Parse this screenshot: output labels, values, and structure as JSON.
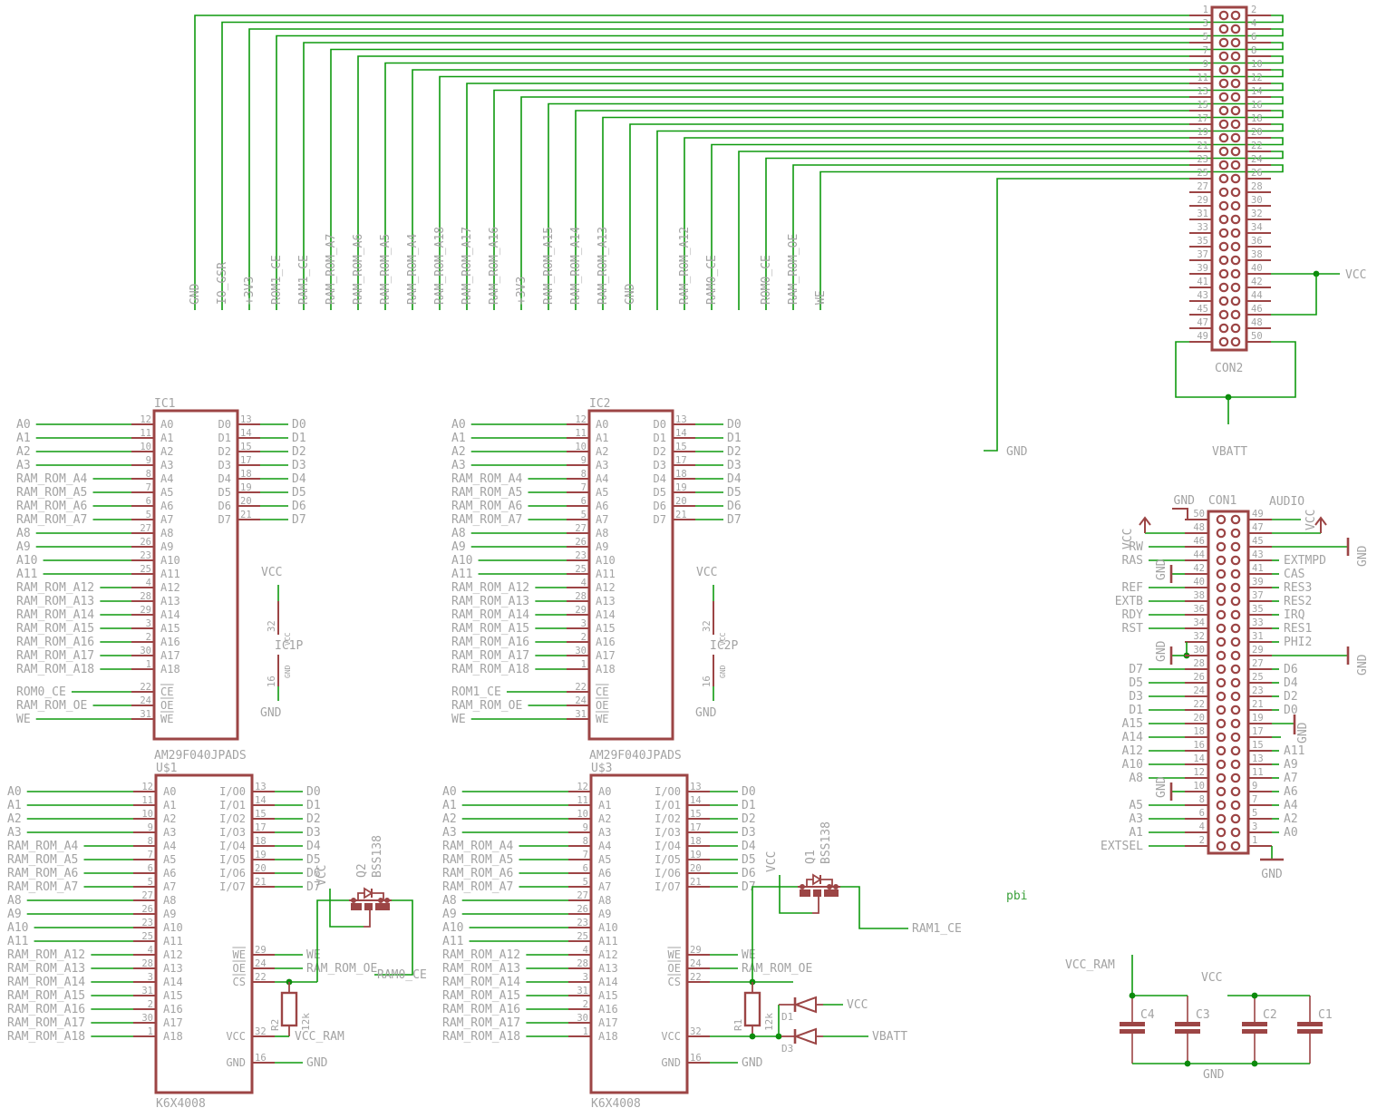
{
  "palette": {
    "wire_green": "#0f9a0f",
    "junction_green": "#0c8a0c",
    "part_maroon": "#9c4545",
    "text_gray": "#a3a3a3",
    "sheet_label_green": "#3aa03a"
  },
  "bus": {
    "labels": [
      "GND",
      "IO_GSR",
      "+3V3",
      "ROM1_CE",
      "RAM1_CE",
      "RAM_ROM_A7",
      "RAM_ROM_A6",
      "RAM_ROM_A5",
      "RAM_ROM_A4",
      "RAM_ROM_A18",
      "RAM_ROM_A17",
      "RAM_ROM_A16",
      "+3V3",
      "RAM_ROM_A15",
      "RAM_ROM_A14",
      "RAM_ROM_A13",
      "GND",
      null,
      "RAM_ROM_A12",
      "RAM0_CE",
      null,
      "ROM0_CE",
      "RAM_ROM_OE",
      "WE"
    ],
    "pin25_net": "GND"
  },
  "con2": {
    "title": "CON2",
    "pin_numbers": [
      1,
      2,
      3,
      4,
      5,
      6,
      7,
      8,
      9,
      10,
      11,
      12,
      13,
      14,
      15,
      16,
      17,
      18,
      19,
      20,
      21,
      22,
      23,
      24,
      25,
      26,
      27,
      28,
      29,
      30,
      31,
      32,
      33,
      34,
      35,
      36,
      37,
      38,
      39,
      40,
      41,
      42,
      43,
      44,
      45,
      46,
      47,
      48,
      49,
      50
    ],
    "vcc_label": "VCC",
    "vbatt_label": "VBATT"
  },
  "flash": {
    "value": "AM29F040JPADS",
    "instances": [
      {
        "name": "IC1",
        "power_name": "IC1P",
        "ce_net": "ROM0_CE"
      },
      {
        "name": "IC2",
        "power_name": "IC2P",
        "ce_net": "ROM1_CE"
      }
    ],
    "left_pins": [
      {
        "net": "A0",
        "pin": "A0",
        "num": "12"
      },
      {
        "net": "A1",
        "pin": "A1",
        "num": "11"
      },
      {
        "net": "A2",
        "pin": "A2",
        "num": "10"
      },
      {
        "net": "A3",
        "pin": "A3",
        "num": "9"
      },
      {
        "net": "RAM_ROM_A4",
        "pin": "A4",
        "num": "8"
      },
      {
        "net": "RAM_ROM_A5",
        "pin": "A5",
        "num": "7"
      },
      {
        "net": "RAM_ROM_A6",
        "pin": "A6",
        "num": "6"
      },
      {
        "net": "RAM_ROM_A7",
        "pin": "A7",
        "num": "5"
      },
      {
        "net": "A8",
        "pin": "A8",
        "num": "27"
      },
      {
        "net": "A9",
        "pin": "A9",
        "num": "26"
      },
      {
        "net": "A10",
        "pin": "A10",
        "num": "23"
      },
      {
        "net": "A11",
        "pin": "A11",
        "num": "25"
      },
      {
        "net": "RAM_ROM_A12",
        "pin": "A12",
        "num": "4"
      },
      {
        "net": "RAM_ROM_A13",
        "pin": "A13",
        "num": "28"
      },
      {
        "net": "RAM_ROM_A14",
        "pin": "A14",
        "num": "29"
      },
      {
        "net": "RAM_ROM_A15",
        "pin": "A15",
        "num": "3"
      },
      {
        "net": "RAM_ROM_A16",
        "pin": "A16",
        "num": "2"
      },
      {
        "net": "RAM_ROM_A17",
        "pin": "A17",
        "num": "30"
      },
      {
        "net": "RAM_ROM_A18",
        "pin": "A18",
        "num": "1"
      }
    ],
    "ctrl_pins": [
      {
        "pin": "CE",
        "num": "22",
        "net": "CE_NET"
      },
      {
        "pin": "OE",
        "num": "24",
        "net": "RAM_ROM_OE"
      },
      {
        "pin": "WE",
        "num": "31",
        "net": "WE"
      }
    ],
    "right_pins": [
      {
        "net": "D0",
        "pin": "D0",
        "num": "13"
      },
      {
        "net": "D1",
        "pin": "D1",
        "num": "14"
      },
      {
        "net": "D2",
        "pin": "D2",
        "num": "15"
      },
      {
        "net": "D3",
        "pin": "D3",
        "num": "17"
      },
      {
        "net": "D4",
        "pin": "D4",
        "num": "18"
      },
      {
        "net": "D5",
        "pin": "D5",
        "num": "19"
      },
      {
        "net": "D6",
        "pin": "D6",
        "num": "20"
      },
      {
        "net": "D7",
        "pin": "D7",
        "num": "21"
      }
    ],
    "power": {
      "vcc": "VCC",
      "gnd": "GND",
      "vcc_pin": "32",
      "gnd_pin": "16",
      "vcc_small": "VCC",
      "gnd_small": "GND"
    }
  },
  "ram": {
    "value": "K6X4008",
    "instances": [
      {
        "name": "U$1",
        "res": "R2",
        "res_value": "12k",
        "q": "Q2",
        "q_value": "BSS138",
        "gate_net": "VCC",
        "out_net": "RAM0_CE",
        "vcc_net": "VCC_RAM",
        "gnd_net": "GND",
        "diodes": false
      },
      {
        "name": "U$3",
        "res": "R1",
        "res_value": "12k",
        "q": "Q1",
        "q_value": "BSS138",
        "gate_net": "VCC",
        "out_net": "RAM1_CE",
        "vcc_net": "VBATT",
        "gnd_net": "GND",
        "diodes": true
      }
    ],
    "left_pins": [
      {
        "net": "A0",
        "pin": "A0",
        "num": "12"
      },
      {
        "net": "A1",
        "pin": "A1",
        "num": "11"
      },
      {
        "net": "A2",
        "pin": "A2",
        "num": "10"
      },
      {
        "net": "A3",
        "pin": "A3",
        "num": "9"
      },
      {
        "net": "RAM_ROM_A4",
        "pin": "A4",
        "num": "8"
      },
      {
        "net": "RAM_ROM_A5",
        "pin": "A5",
        "num": "7"
      },
      {
        "net": "RAM_ROM_A6",
        "pin": "A6",
        "num": "6"
      },
      {
        "net": "RAM_ROM_A7",
        "pin": "A7",
        "num": "5"
      },
      {
        "net": "A8",
        "pin": "A8",
        "num": "27"
      },
      {
        "net": "A9",
        "pin": "A9",
        "num": "26"
      },
      {
        "net": "A10",
        "pin": "A10",
        "num": "23"
      },
      {
        "net": "A11",
        "pin": "A11",
        "num": "25"
      },
      {
        "net": "RAM_ROM_A12",
        "pin": "A12",
        "num": "4"
      },
      {
        "net": "RAM_ROM_A13",
        "pin": "A13",
        "num": "28"
      },
      {
        "net": "RAM_ROM_A14",
        "pin": "A14",
        "num": "3"
      },
      {
        "net": "RAM_ROM_A15",
        "pin": "A15",
        "num": "31"
      },
      {
        "net": "RAM_ROM_A16",
        "pin": "A16",
        "num": "2"
      },
      {
        "net": "RAM_ROM_A17",
        "pin": "A17",
        "num": "30"
      },
      {
        "net": "RAM_ROM_A18",
        "pin": "A18",
        "num": "1"
      }
    ],
    "io_pins": [
      {
        "net": "D0",
        "pin": "I/O0",
        "num": "13"
      },
      {
        "net": "D1",
        "pin": "I/O1",
        "num": "14"
      },
      {
        "net": "D2",
        "pin": "I/O2",
        "num": "15"
      },
      {
        "net": "D3",
        "pin": "I/O3",
        "num": "17"
      },
      {
        "net": "D4",
        "pin": "I/O4",
        "num": "18"
      },
      {
        "net": "D5",
        "pin": "I/O5",
        "num": "19"
      },
      {
        "net": "D6",
        "pin": "I/O6",
        "num": "20"
      },
      {
        "net": "D7",
        "pin": "I/O7",
        "num": "21"
      }
    ],
    "we_pin": {
      "pin": "WE",
      "num": "29",
      "net": "WE"
    },
    "oe_pin": {
      "pin": "OE",
      "num": "24",
      "net": "RAM_ROM_OE"
    },
    "cs_pin": {
      "pin": "CS",
      "num": "22"
    },
    "vcc_pin": {
      "pin": "VCC",
      "num": "32"
    },
    "gnd_pin": {
      "pin": "GND",
      "num": "16"
    }
  },
  "diodes": [
    {
      "name": "D1",
      "net": "VCC"
    },
    {
      "name": "D3",
      "net": "VBATT"
    }
  ],
  "con1": {
    "title": "CON1",
    "top_gnd_label": "GND",
    "left_rows": [
      {
        "num": "50",
        "type": "gndtop",
        "label": "GND"
      },
      {
        "num": "48",
        "type": "vcc",
        "label": "VCC"
      },
      {
        "num": "46",
        "type": "net",
        "label": "RW"
      },
      {
        "num": "44",
        "type": "net",
        "label": "RAS"
      },
      {
        "num": "42",
        "type": "gndbar",
        "label": "GND"
      },
      {
        "num": "40",
        "type": "net",
        "label": "REF"
      },
      {
        "num": "38",
        "type": "net",
        "label": "EXTB"
      },
      {
        "num": "36",
        "type": "net",
        "label": "RDY"
      },
      {
        "num": "34",
        "type": "net",
        "label": "RST"
      },
      {
        "num": "32",
        "type": "gnddrop",
        "label": ""
      },
      {
        "num": "30",
        "type": "gndbar",
        "label": "GND"
      },
      {
        "num": "28",
        "type": "net",
        "label": "D7"
      },
      {
        "num": "26",
        "type": "net",
        "label": "D5"
      },
      {
        "num": "24",
        "type": "net",
        "label": "D3"
      },
      {
        "num": "22",
        "type": "net",
        "label": "D1"
      },
      {
        "num": "20",
        "type": "net",
        "label": "A15"
      },
      {
        "num": "18",
        "type": "net",
        "label": "A14"
      },
      {
        "num": "16",
        "type": "net",
        "label": "A12"
      },
      {
        "num": "14",
        "type": "net",
        "label": "A10"
      },
      {
        "num": "12",
        "type": "net",
        "label": "A8"
      },
      {
        "num": "10",
        "type": "gndbar",
        "label": "GND"
      },
      {
        "num": "8",
        "type": "net",
        "label": "A5"
      },
      {
        "num": "6",
        "type": "net",
        "label": "A3"
      },
      {
        "num": "4",
        "type": "net",
        "label": "A1"
      },
      {
        "num": "2",
        "type": "net",
        "label": "EXTSEL"
      }
    ],
    "right_rows": [
      {
        "num": "49",
        "type": "audio",
        "label": "AUDIO"
      },
      {
        "num": "47",
        "type": "vcc",
        "label": "VCC"
      },
      {
        "num": "45",
        "type": "gndfar",
        "label": "GND"
      },
      {
        "num": "43",
        "type": "net",
        "label": "EXTMPD"
      },
      {
        "num": "41",
        "type": "net",
        "label": "CAS"
      },
      {
        "num": "39",
        "type": "net",
        "label": "RES3"
      },
      {
        "num": "37",
        "type": "net",
        "label": "RES2"
      },
      {
        "num": "35",
        "type": "net",
        "label": "IRQ"
      },
      {
        "num": "33",
        "type": "net",
        "label": "RES1"
      },
      {
        "num": "31",
        "type": "net",
        "label": "PHI2"
      },
      {
        "num": "29",
        "type": "gndfar",
        "label": "GND"
      },
      {
        "num": "27",
        "type": "net",
        "label": "D6"
      },
      {
        "num": "25",
        "type": "net",
        "label": "D4"
      },
      {
        "num": "23",
        "type": "net",
        "label": "D2"
      },
      {
        "num": "21",
        "type": "net",
        "label": "D0"
      },
      {
        "num": "19",
        "type": "gndbar19",
        "label": "GND"
      },
      {
        "num": "17",
        "type": "stub",
        "label": ""
      },
      {
        "num": "15",
        "type": "net",
        "label": "A11"
      },
      {
        "num": "13",
        "type": "net",
        "label": "A9"
      },
      {
        "num": "11",
        "type": "net",
        "label": "A7"
      },
      {
        "num": "9",
        "type": "net",
        "label": "A6"
      },
      {
        "num": "7",
        "type": "net",
        "label": "A4"
      },
      {
        "num": "5",
        "type": "net",
        "label": "A2"
      },
      {
        "num": "3",
        "type": "net",
        "label": "A0"
      },
      {
        "num": "1",
        "type": "gndbottom",
        "label": "GND"
      }
    ]
  },
  "caps": {
    "items": [
      "C4",
      "C3",
      "C2",
      "C1"
    ],
    "left_rail_net": "VCC_RAM",
    "right_rail_net": "VCC",
    "gnd_net": "GND"
  },
  "misc": {
    "mid_gnd": "GND",
    "sheet_label": "pbi"
  }
}
